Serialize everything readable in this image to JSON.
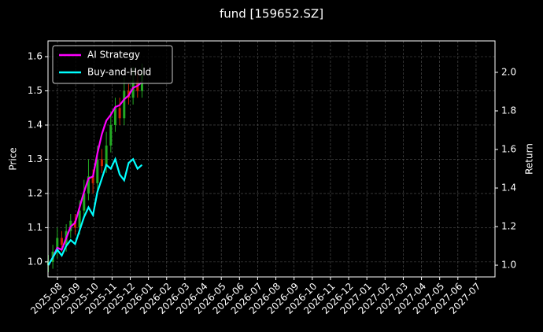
{
  "chart_data": {
    "type": "candlestick",
    "title": "fund [159652.SZ]",
    "ylabel": "Price",
    "y2label": "Return",
    "x": [
      -0.5,
      -0.255,
      -0.01,
      0.235,
      0.48,
      0.725,
      0.97,
      1.215,
      1.46,
      1.705,
      1.95,
      2.195,
      2.44,
      2.685,
      2.93,
      3.175,
      3.42,
      3.665,
      3.91,
      4.155,
      4.4,
      4.645
    ],
    "open": [
      0.99,
      1.0,
      1.03,
      1.07,
      1.05,
      1.09,
      1.12,
      1.1,
      1.15,
      1.2,
      1.25,
      1.23,
      1.3,
      1.28,
      1.34,
      1.4,
      1.45,
      1.42,
      1.5,
      1.48,
      1.53,
      1.5
    ],
    "high": [
      1.02,
      1.05,
      1.1,
      1.09,
      1.11,
      1.14,
      1.14,
      1.18,
      1.24,
      1.3,
      1.27,
      1.34,
      1.33,
      1.38,
      1.44,
      1.48,
      1.48,
      1.54,
      1.52,
      1.57,
      1.56,
      1.58
    ],
    "low": [
      0.97,
      0.98,
      1.01,
      1.03,
      1.03,
      1.07,
      1.08,
      1.08,
      1.13,
      1.18,
      1.2,
      1.21,
      1.26,
      1.26,
      1.32,
      1.38,
      1.4,
      1.4,
      1.46,
      1.46,
      1.48,
      1.48
    ],
    "close": [
      1.0,
      1.03,
      1.07,
      1.05,
      1.09,
      1.12,
      1.1,
      1.15,
      1.2,
      1.25,
      1.23,
      1.3,
      1.28,
      1.34,
      1.4,
      1.45,
      1.42,
      1.5,
      1.48,
      1.53,
      1.5,
      1.55
    ],
    "up_color": "#22aa22",
    "down_color": "#cc2200",
    "series": [
      {
        "name": "AI Strategy",
        "color": "#ff00ff",
        "axis": "y2",
        "values": [
          1.0,
          1.04,
          1.09,
          1.08,
          1.14,
          1.2,
          1.22,
          1.3,
          1.38,
          1.45,
          1.46,
          1.58,
          1.68,
          1.75,
          1.78,
          1.82,
          1.83,
          1.86,
          1.88,
          1.92,
          1.93,
          1.95
        ]
      },
      {
        "name": "Buy-and-Hold",
        "color": "#00ffff",
        "axis": "y2",
        "values": [
          1.0,
          1.04,
          1.08,
          1.05,
          1.1,
          1.13,
          1.11,
          1.18,
          1.25,
          1.3,
          1.26,
          1.38,
          1.45,
          1.52,
          1.5,
          1.55,
          1.47,
          1.44,
          1.53,
          1.55,
          1.5,
          1.52
        ]
      }
    ],
    "xlim": [
      -0.52,
      24.04
    ],
    "xticks": [
      {
        "value": 0,
        "label": "2025-08"
      },
      {
        "value": 1,
        "label": "2025-09"
      },
      {
        "value": 2,
        "label": "2025-10"
      },
      {
        "value": 3,
        "label": "2025-11"
      },
      {
        "value": 4,
        "label": "2025-12"
      },
      {
        "value": 5,
        "label": "2026-01"
      },
      {
        "value": 6,
        "label": "2026-02"
      },
      {
        "value": 7,
        "label": "2026-03"
      },
      {
        "value": 8,
        "label": "2026-04"
      },
      {
        "value": 9,
        "label": "2026-05"
      },
      {
        "value": 10,
        "label": "2026-06"
      },
      {
        "value": 11,
        "label": "2026-07"
      },
      {
        "value": 12,
        "label": "2026-08"
      },
      {
        "value": 13,
        "label": "2026-09"
      },
      {
        "value": 14,
        "label": "2026-10"
      },
      {
        "value": 15,
        "label": "2026-11"
      },
      {
        "value": 16,
        "label": "2026-12"
      },
      {
        "value": 17,
        "label": "2027-01"
      },
      {
        "value": 18,
        "label": "2027-02"
      },
      {
        "value": 19,
        "label": "2027-03"
      },
      {
        "value": 20,
        "label": "2027-04"
      },
      {
        "value": 21,
        "label": "2027-05"
      },
      {
        "value": 22,
        "label": "2027-06"
      },
      {
        "value": 23,
        "label": "2027-07"
      }
    ],
    "ylim": [
      0.956,
      1.646
    ],
    "yticks": [
      {
        "value": 1.0,
        "label": "1.0"
      },
      1.1,
      1.2,
      1.3,
      1.4,
      1.5,
      1.6
    ],
    "y2lim": [
      0.939,
      2.163
    ],
    "y2ticks": [
      {
        "value": 1.0,
        "label": "1.0"
      },
      1.2,
      1.4,
      1.6,
      1.8,
      {
        "value": 2.0,
        "label": "2.0"
      }
    ],
    "grid": true,
    "legend": "upper left"
  }
}
